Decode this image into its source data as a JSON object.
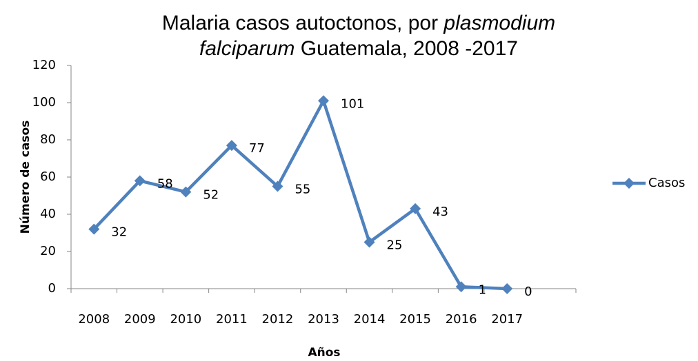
{
  "chart_data": {
    "type": "line",
    "title_lines": [
      [
        {
          "text": "Malaria casos autoctonos, por ",
          "italic": false
        },
        {
          "text": "plasmodium",
          "italic": true
        }
      ],
      [
        {
          "text": "falciparum",
          "italic": true
        },
        {
          "text": " Guatemala, 2008 -2017",
          "italic": false
        }
      ]
    ],
    "x_label": "Años",
    "y_label": "Número de casos",
    "categories": [
      "2008",
      "2009",
      "2010",
      "2011",
      "2012",
      "2013",
      "2014",
      "2015",
      "2016",
      "2017",
      null
    ],
    "series": [
      {
        "name": "Casos",
        "color": "#4f81bd",
        "values": [
          32,
          58,
          52,
          77,
          55,
          101,
          25,
          43,
          1,
          0,
          null
        ]
      }
    ],
    "ylim": [
      0,
      120
    ],
    "yticks": [
      0,
      20,
      40,
      60,
      80,
      100,
      120
    ],
    "grid": false,
    "legend": "right",
    "data_labels": true
  }
}
